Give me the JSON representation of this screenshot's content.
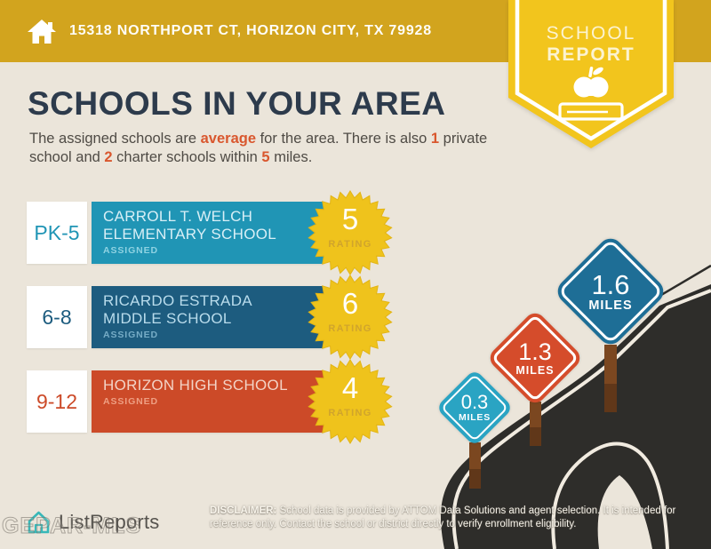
{
  "topbar": {
    "address": "15318 NORTHPORT CT, HORIZON CITY, TX 79928",
    "icon": "home-icon"
  },
  "badge": {
    "line1": "SCHOOL",
    "line2": "REPORT",
    "icon": "apple-on-books-icon"
  },
  "title": "SCHOOLS IN YOUR AREA",
  "intro": {
    "seg1": "The assigned schools are ",
    "em1": "average",
    "seg2": " for the area. There is also ",
    "em2": "1",
    "seg3": " private school and ",
    "em3": "2",
    "seg4": " charter schools within ",
    "em4": "5",
    "seg5": " miles."
  },
  "schools": [
    {
      "grades": "PK-5",
      "name1": "CARROLL T. WELCH",
      "name2": "ELEMENTARY SCHOOL",
      "status": "ASSIGNED",
      "rating": "5",
      "rating_label": "RATING",
      "color": "#2095b5"
    },
    {
      "grades": "6-8",
      "name1": "RICARDO ESTRADA",
      "name2": "MIDDLE SCHOOL",
      "status": "ASSIGNED",
      "rating": "6",
      "rating_label": "RATING",
      "color": "#1d5c7f"
    },
    {
      "grades": "9-12",
      "name1": "HORIZON HIGH SCHOOL",
      "name2": "",
      "status": "ASSIGNED",
      "rating": "4",
      "rating_label": "RATING",
      "color": "#cc4a28"
    }
  ],
  "distance_signs": [
    {
      "value": "0.3",
      "unit": "MILES",
      "color": "#2aa4c3"
    },
    {
      "value": "1.3",
      "unit": "MILES",
      "color": "#d54c2b"
    },
    {
      "value": "1.6",
      "unit": "MILES",
      "color": "#1e6e96"
    }
  ],
  "footer": {
    "brand": "ListReports",
    "brand_icon": "house-icon",
    "watermark": "GEPAR-MLS",
    "disclaimer_bold": "DISCLAIMER:",
    "disclaimer_rest": " School data is provided by ATTOM Data Solutions and agent selection. It is intended for reference only. Contact the school or district directly to verify enrollment eligibility."
  },
  "colors": {
    "topbar": "#d2a41e",
    "badge_yellow": "#f2c51d",
    "background": "#ebe5da",
    "accent_orange": "#d9572e",
    "title_navy": "#2d3b4c",
    "road": "#2e2d2a",
    "road_line": "#f1ebe0",
    "post_brown": "#7b4720",
    "starburst": "#efc31c"
  }
}
